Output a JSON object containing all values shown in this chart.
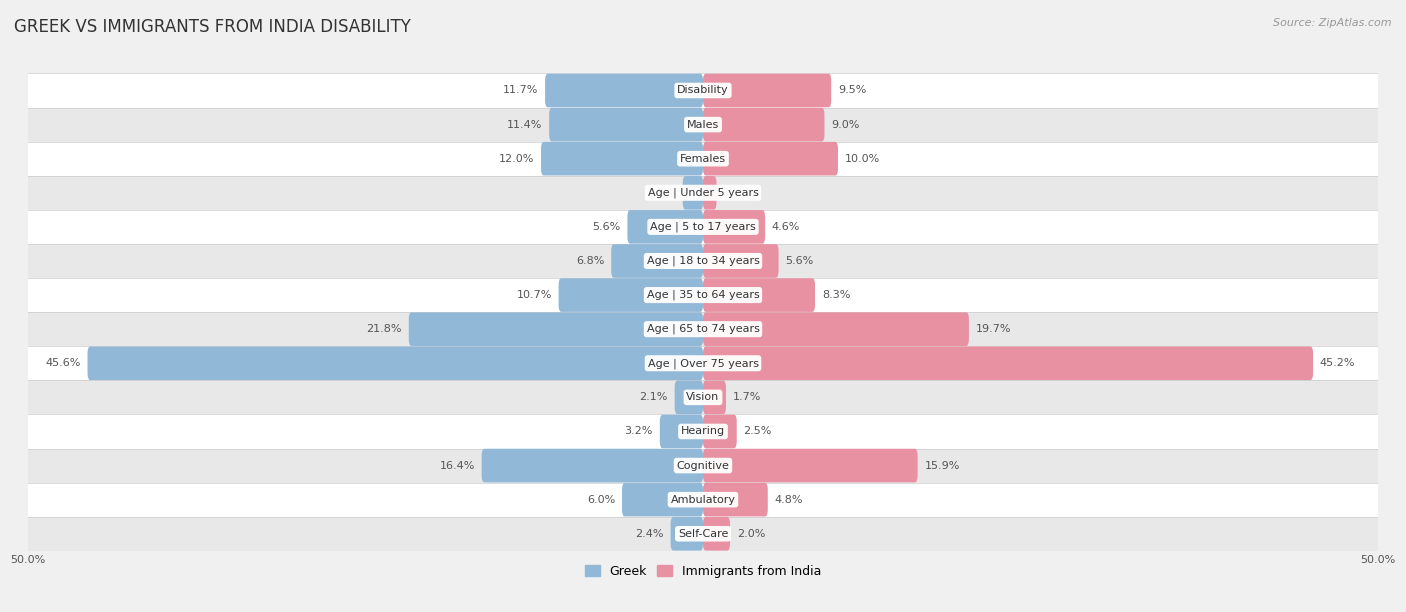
{
  "title": "GREEK VS IMMIGRANTS FROM INDIA DISABILITY",
  "source": "Source: ZipAtlas.com",
  "categories": [
    "Disability",
    "Males",
    "Females",
    "Age | Under 5 years",
    "Age | 5 to 17 years",
    "Age | 18 to 34 years",
    "Age | 35 to 64 years",
    "Age | 65 to 74 years",
    "Age | Over 75 years",
    "Vision",
    "Hearing",
    "Cognitive",
    "Ambulatory",
    "Self-Care"
  ],
  "greek_values": [
    11.7,
    11.4,
    12.0,
    1.5,
    5.6,
    6.8,
    10.7,
    21.8,
    45.6,
    2.1,
    3.2,
    16.4,
    6.0,
    2.4
  ],
  "india_values": [
    9.5,
    9.0,
    10.0,
    1.0,
    4.6,
    5.6,
    8.3,
    19.7,
    45.2,
    1.7,
    2.5,
    15.9,
    4.8,
    2.0
  ],
  "greek_color": "#92b8d8",
  "india_color": "#e891a2",
  "bar_height": 0.58,
  "xlim": 50.0,
  "background_color": "#f0f0f0",
  "row_bg_light": "#ffffff",
  "row_bg_dark": "#e8e8e8",
  "title_fontsize": 12,
  "label_fontsize": 8,
  "value_fontsize": 8,
  "legend_fontsize": 9,
  "source_fontsize": 8
}
